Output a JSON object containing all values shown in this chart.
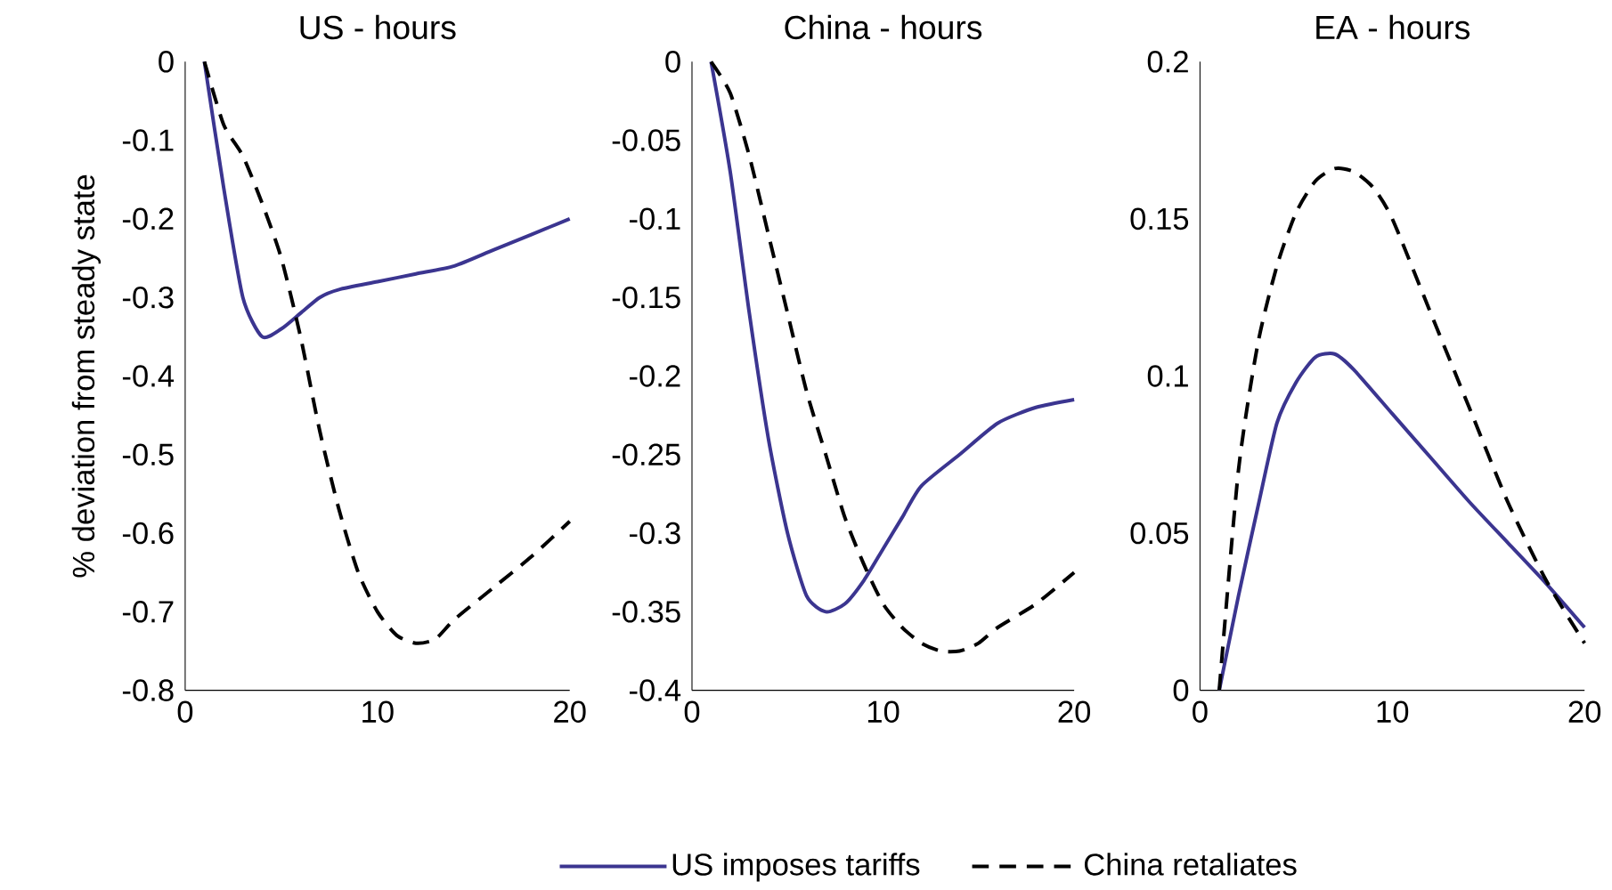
{
  "chart_data": [
    {
      "type": "line",
      "title": "US - hours",
      "ylabel": "% deviation from steady state",
      "xlim": [
        0,
        20
      ],
      "xticks": [
        0,
        10,
        20
      ],
      "ylim": [
        -0.8,
        0
      ],
      "yticks": [
        -0.8,
        -0.7,
        -0.6,
        -0.5,
        -0.4,
        -0.3,
        -0.2,
        -0.1,
        0
      ],
      "grid": false,
      "legend": false,
      "x": [
        1,
        2,
        3,
        4,
        5,
        6,
        7,
        8,
        10,
        12,
        14,
        16,
        18,
        20
      ],
      "series": [
        {
          "color": "#3b3590",
          "line_style": "solid",
          "values": [
            0,
            -0.16,
            -0.3,
            -0.35,
            -0.34,
            -0.32,
            -0.3,
            -0.29,
            -0.28,
            -0.27,
            -0.26,
            -0.24,
            -0.22,
            -0.2
          ]
        },
        {
          "color": "#000000",
          "line_style": "dashed",
          "x": [
            1,
            2,
            3,
            4,
            5,
            6,
            7,
            8,
            9,
            10,
            11,
            12,
            13,
            14,
            16,
            18,
            20
          ],
          "values": [
            0,
            -0.08,
            -0.12,
            -0.18,
            -0.25,
            -0.35,
            -0.47,
            -0.57,
            -0.65,
            -0.7,
            -0.73,
            -0.74,
            -0.735,
            -0.71,
            -0.67,
            -0.63,
            -0.585
          ]
        }
      ]
    },
    {
      "type": "line",
      "title": "China - hours",
      "xlim": [
        0,
        20
      ],
      "xticks": [
        0,
        10,
        20
      ],
      "ylim": [
        -0.4,
        0
      ],
      "yticks": [
        -0.4,
        -0.35,
        -0.3,
        -0.25,
        -0.2,
        -0.15,
        -0.1,
        -0.05,
        0
      ],
      "grid": false,
      "legend": "bottom",
      "x": [
        1,
        2,
        3,
        4,
        5,
        6,
        7,
        8,
        9,
        10,
        11,
        12,
        14,
        16,
        18,
        20
      ],
      "series": [
        {
          "name": "US imposes tariffs",
          "color": "#3b3590",
          "line_style": "solid",
          "values": [
            0,
            -0.07,
            -0.16,
            -0.24,
            -0.3,
            -0.34,
            -0.35,
            -0.345,
            -0.33,
            -0.31,
            -0.29,
            -0.27,
            -0.25,
            -0.23,
            -0.22,
            -0.215
          ]
        },
        {
          "name": "China retaliates",
          "color": "#000000",
          "line_style": "dashed",
          "x": [
            1,
            2,
            3,
            4,
            5,
            6,
            7,
            8,
            9,
            10,
            11,
            12,
            13,
            14,
            15,
            16,
            18,
            20
          ],
          "values": [
            0,
            -0.02,
            -0.06,
            -0.11,
            -0.16,
            -0.21,
            -0.25,
            -0.29,
            -0.32,
            -0.345,
            -0.36,
            -0.37,
            -0.375,
            -0.375,
            -0.37,
            -0.36,
            -0.345,
            -0.325
          ]
        }
      ]
    },
    {
      "type": "line",
      "title": "EA - hours",
      "xlim": [
        0,
        20
      ],
      "xticks": [
        0,
        10,
        20
      ],
      "ylim": [
        0,
        0.2
      ],
      "yticks": [
        0,
        0.05,
        0.1,
        0.15,
        0.2
      ],
      "grid": false,
      "legend": false,
      "x": [
        1,
        2,
        3,
        4,
        5,
        6,
        7,
        8,
        10,
        12,
        14,
        16,
        18,
        20
      ],
      "series": [
        {
          "color": "#3b3590",
          "line_style": "solid",
          "values": [
            0,
            0.03,
            0.058,
            0.085,
            0.098,
            0.106,
            0.107,
            0.102,
            0.088,
            0.074,
            0.06,
            0.047,
            0.034,
            0.02
          ]
        },
        {
          "color": "#000000",
          "line_style": "dashed",
          "x": [
            1,
            2,
            3,
            4,
            5,
            6,
            7,
            8,
            9,
            10,
            12,
            14,
            16,
            18,
            20
          ],
          "values": [
            0,
            0.07,
            0.11,
            0.135,
            0.152,
            0.162,
            0.166,
            0.165,
            0.16,
            0.15,
            0.12,
            0.09,
            0.06,
            0.035,
            0.015
          ]
        }
      ]
    }
  ]
}
